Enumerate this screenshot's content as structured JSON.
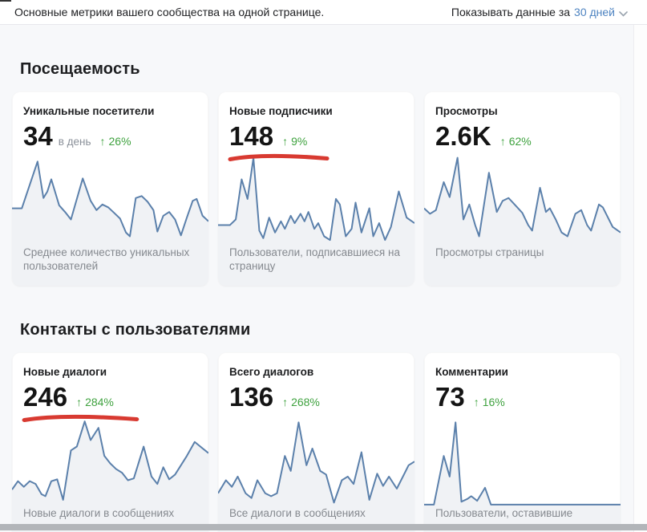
{
  "header": {
    "title": "Основные метрики вашего сообщества на одной странице.",
    "period_label": "Показывать данные за",
    "period_value": "30 дней"
  },
  "colors": {
    "accent_link": "#4d83c1",
    "chart_line": "#5b80ab",
    "chart_fill": "#f0f2f5",
    "positive_green": "#3fa23f",
    "annotation_red": "#d83a31",
    "caption_gray": "#85898f"
  },
  "sections": [
    {
      "title": "Посещаемость",
      "cards": [
        {
          "title": "Уникальные посетители",
          "value": "34",
          "unit": "в день",
          "delta_dir": "up",
          "delta": "26%",
          "caption": "Среднее количество уникальных пользователей",
          "red_underline": false,
          "underline_width": 0
        },
        {
          "title": "Новые подписчики",
          "value": "148",
          "unit": "",
          "delta_dir": "up",
          "delta": "9%",
          "caption": "Пользователи, подписавшиеся на страницу",
          "red_underline": true,
          "underline_width": 128
        },
        {
          "title": "Просмотры",
          "value": "2.6K",
          "unit": "",
          "delta_dir": "up",
          "delta": "62%",
          "caption": "Просмотры страницы",
          "red_underline": false,
          "underline_width": 0
        }
      ]
    },
    {
      "title": "Контакты с пользователями",
      "cards": [
        {
          "title": "Новые диалоги",
          "value": "246",
          "unit": "",
          "delta_dir": "up",
          "delta": "284%",
          "caption": "Новые диалоги в сообщениях",
          "red_underline": true,
          "underline_width": 148
        },
        {
          "title": "Всего диалогов",
          "value": "136",
          "unit": "",
          "delta_dir": "up",
          "delta": "268%",
          "caption": "Все диалоги в сообщениях",
          "red_underline": false,
          "underline_width": 0
        },
        {
          "title": "Комментарии",
          "value": "73",
          "unit": "",
          "delta_dir": "up",
          "delta": "16%",
          "caption": "Пользователи, оставившие",
          "red_underline": false,
          "underline_width": 0
        }
      ]
    }
  ],
  "chart_data": [
    {
      "type": "area",
      "title": "Уникальные посетители",
      "x_range": "30 дней",
      "legend": "off",
      "axes": "off",
      "points": [
        [
          0,
          58
        ],
        [
          5,
          58
        ],
        [
          13,
          8
        ],
        [
          16,
          47
        ],
        [
          18,
          40
        ],
        [
          20,
          27
        ],
        [
          24,
          55
        ],
        [
          27,
          62
        ],
        [
          30,
          70
        ],
        [
          36,
          26
        ],
        [
          40,
          50
        ],
        [
          43,
          60
        ],
        [
          46,
          54
        ],
        [
          49,
          57
        ],
        [
          52,
          63
        ],
        [
          55,
          69
        ],
        [
          58,
          84
        ],
        [
          60,
          88
        ],
        [
          63,
          47
        ],
        [
          66,
          45
        ],
        [
          69,
          51
        ],
        [
          72,
          60
        ],
        [
          74,
          83
        ],
        [
          77,
          66
        ],
        [
          80,
          62
        ],
        [
          83,
          70
        ],
        [
          86,
          87
        ],
        [
          89,
          68
        ],
        [
          92,
          50
        ],
        [
          94,
          48
        ],
        [
          97,
          66
        ],
        [
          100,
          72
        ]
      ]
    },
    {
      "type": "area",
      "title": "Новые подписчики",
      "x_range": "30 дней",
      "legend": "off",
      "axes": "off",
      "points": [
        [
          0,
          76
        ],
        [
          6,
          76
        ],
        [
          9,
          70
        ],
        [
          12,
          27
        ],
        [
          15,
          48
        ],
        [
          18,
          4
        ],
        [
          21,
          82
        ],
        [
          23,
          90
        ],
        [
          26,
          68
        ],
        [
          29,
          84
        ],
        [
          32,
          72
        ],
        [
          34,
          80
        ],
        [
          37,
          66
        ],
        [
          39,
          74
        ],
        [
          42,
          64
        ],
        [
          44,
          72
        ],
        [
          46,
          62
        ],
        [
          49,
          80
        ],
        [
          51,
          74
        ],
        [
          54,
          88
        ],
        [
          57,
          92
        ],
        [
          60,
          48
        ],
        [
          62,
          54
        ],
        [
          65,
          88
        ],
        [
          68,
          80
        ],
        [
          70,
          52
        ],
        [
          73,
          84
        ],
        [
          77,
          58
        ],
        [
          79,
          88
        ],
        [
          82,
          74
        ],
        [
          85,
          92
        ],
        [
          88,
          78
        ],
        [
          92,
          40
        ],
        [
          96,
          68
        ],
        [
          100,
          74
        ]
      ]
    },
    {
      "type": "area",
      "title": "Просмотры",
      "x_range": "30 дней",
      "legend": "off",
      "axes": "off",
      "points": [
        [
          0,
          58
        ],
        [
          3,
          64
        ],
        [
          6,
          60
        ],
        [
          10,
          30
        ],
        [
          13,
          46
        ],
        [
          17,
          4
        ],
        [
          20,
          70
        ],
        [
          23,
          54
        ],
        [
          26,
          76
        ],
        [
          28,
          88
        ],
        [
          33,
          20
        ],
        [
          37,
          62
        ],
        [
          40,
          50
        ],
        [
          43,
          47
        ],
        [
          47,
          56
        ],
        [
          50,
          63
        ],
        [
          53,
          76
        ],
        [
          55,
          82
        ],
        [
          59,
          36
        ],
        [
          62,
          62
        ],
        [
          64,
          58
        ],
        [
          67,
          70
        ],
        [
          70,
          84
        ],
        [
          73,
          88
        ],
        [
          77,
          64
        ],
        [
          80,
          60
        ],
        [
          83,
          76
        ],
        [
          85,
          82
        ],
        [
          89,
          54
        ],
        [
          91,
          57
        ],
        [
          96,
          78
        ],
        [
          100,
          84
        ]
      ]
    },
    {
      "type": "area",
      "title": "Новые диалоги",
      "x_range": "30 дней",
      "legend": "off",
      "axes": "off",
      "points": [
        [
          0,
          80
        ],
        [
          3,
          71
        ],
        [
          6,
          77
        ],
        [
          9,
          71
        ],
        [
          12,
          74
        ],
        [
          15,
          85
        ],
        [
          17,
          87
        ],
        [
          20,
          71
        ],
        [
          23,
          69
        ],
        [
          26,
          91
        ],
        [
          30,
          38
        ],
        [
          33,
          34
        ],
        [
          37,
          7
        ],
        [
          40,
          27
        ],
        [
          44,
          14
        ],
        [
          47,
          44
        ],
        [
          50,
          52
        ],
        [
          53,
          58
        ],
        [
          56,
          62
        ],
        [
          59,
          70
        ],
        [
          62,
          68
        ],
        [
          67,
          34
        ],
        [
          71,
          66
        ],
        [
          74,
          74
        ],
        [
          77,
          56
        ],
        [
          80,
          69
        ],
        [
          83,
          64
        ],
        [
          86,
          54
        ],
        [
          89,
          44
        ],
        [
          93,
          29
        ],
        [
          100,
          41
        ]
      ]
    },
    {
      "type": "area",
      "title": "Всего диалогов",
      "x_range": "30 дней",
      "legend": "off",
      "axes": "off",
      "points": [
        [
          0,
          84
        ],
        [
          4,
          70
        ],
        [
          7,
          77
        ],
        [
          10,
          66
        ],
        [
          14,
          84
        ],
        [
          17,
          89
        ],
        [
          20,
          70
        ],
        [
          24,
          84
        ],
        [
          27,
          87
        ],
        [
          30,
          84
        ],
        [
          34,
          44
        ],
        [
          37,
          60
        ],
        [
          41,
          8
        ],
        [
          45,
          54
        ],
        [
          48,
          36
        ],
        [
          52,
          60
        ],
        [
          55,
          64
        ],
        [
          59,
          94
        ],
        [
          63,
          70
        ],
        [
          66,
          66
        ],
        [
          69,
          74
        ],
        [
          73,
          40
        ],
        [
          77,
          91
        ],
        [
          81,
          63
        ],
        [
          84,
          76
        ],
        [
          87,
          66
        ],
        [
          91,
          79
        ],
        [
          97,
          54
        ],
        [
          100,
          50
        ]
      ]
    },
    {
      "type": "area",
      "title": "Комментарии",
      "x_range": "30 дней",
      "legend": "off",
      "axes": "off",
      "points": [
        [
          0,
          96
        ],
        [
          5,
          96
        ],
        [
          10,
          44
        ],
        [
          13,
          66
        ],
        [
          16,
          8
        ],
        [
          19,
          93
        ],
        [
          22,
          90
        ],
        [
          24,
          87
        ],
        [
          27,
          92
        ],
        [
          31,
          78
        ],
        [
          34,
          96
        ],
        [
          40,
          96
        ],
        [
          100,
          96
        ]
      ]
    }
  ]
}
